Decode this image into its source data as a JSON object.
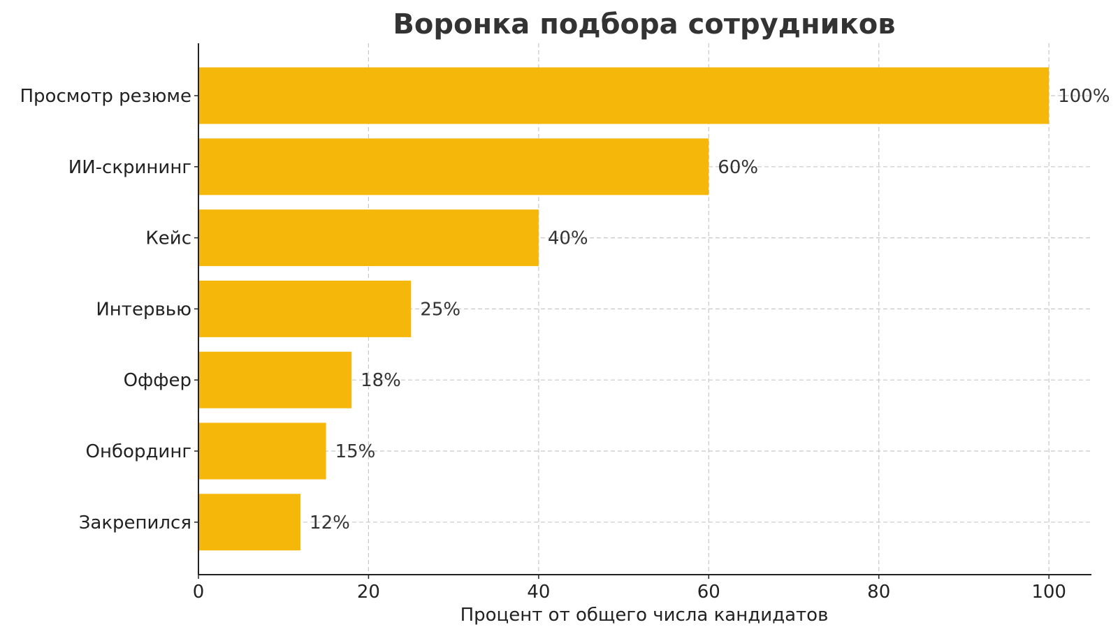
{
  "chart_data": {
    "type": "bar",
    "orientation": "horizontal",
    "title": "Воронка подбора сотрудников",
    "xlabel": "Процент от общего числа кандидатов",
    "ylabel": "",
    "categories": [
      "Просмотр резюме",
      "ИИ-скрининг",
      "Кейс",
      "Интервью",
      "Оффер",
      "Онбординг",
      "Закрепился"
    ],
    "values": [
      100,
      60,
      40,
      25,
      18,
      15,
      12
    ],
    "value_labels": [
      "100%",
      "60%",
      "40%",
      "25%",
      "18%",
      "15%",
      "12%"
    ],
    "xlim": [
      0,
      105
    ],
    "xticks": [
      0,
      20,
      40,
      60,
      80,
      100
    ],
    "xtick_labels": [
      "0",
      "20",
      "40",
      "60",
      "80",
      "100"
    ],
    "grid": true,
    "bar_color": "#F5B70A"
  }
}
